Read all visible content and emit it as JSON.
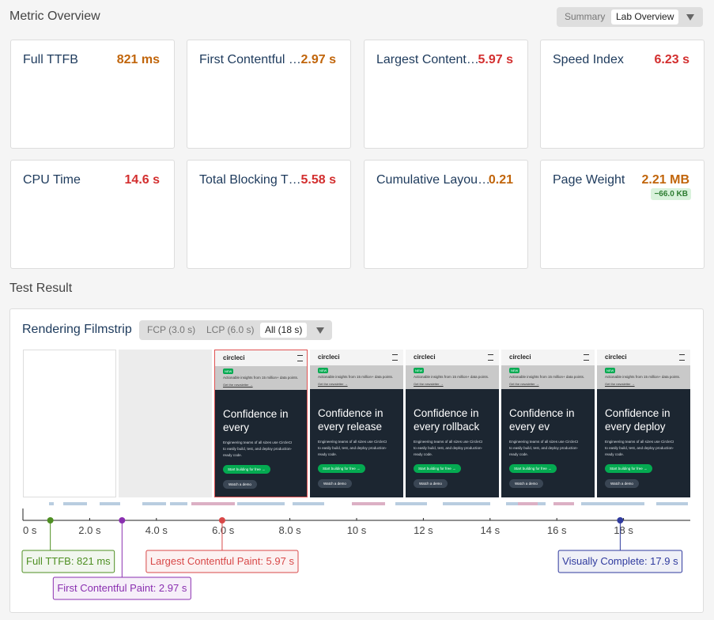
{
  "header": {
    "title": "Metric Overview",
    "view_options": [
      "Summary",
      "Lab Overview"
    ],
    "selected_view": 1
  },
  "metrics": [
    {
      "name": "Full TTFB",
      "value": "821 ms",
      "color": "#c1650b"
    },
    {
      "name": "First Contentful …",
      "value": "2.97 s",
      "color": "#c1650b"
    },
    {
      "name": "Largest Content…",
      "value": "5.97 s",
      "color": "#d32f2f"
    },
    {
      "name": "Speed Index",
      "value": "6.23 s",
      "color": "#d32f2f"
    },
    {
      "name": "CPU Time",
      "value": "14.6 s",
      "color": "#d32f2f"
    },
    {
      "name": "Total Blocking T…",
      "value": "5.58 s",
      "color": "#d32f2f"
    },
    {
      "name": "Cumulative Layou…",
      "value": "0.21",
      "color": "#c1650b"
    },
    {
      "name": "Page Weight",
      "value": "2.21 MB",
      "color": "#c1650b",
      "delta": "−66.0 KB"
    }
  ],
  "test_result": {
    "title": "Test Result",
    "filmstrip": {
      "title": "Rendering Filmstrip",
      "tabs": [
        "FCP (3.0 s)",
        "LCP (6.0 s)",
        "All (18 s)"
      ],
      "selected_tab": 2,
      "page": {
        "logo": "circleci",
        "badge": "NEW",
        "banner": "Actionable insights from 15 million+ data points.",
        "link": "Get the newsletter →",
        "body": "Engineering teams of all sizes use CircleCI to easily build, test, and deploy production-ready code.",
        "cta": "Start building for free →",
        "secondary": "Watch a demo"
      },
      "frames": [
        {
          "headline": [
            "Confidence in",
            "every"
          ],
          "highlight_color": "#e05252"
        },
        {
          "headline": [
            "Confidence in",
            "every release"
          ]
        },
        {
          "headline": [
            "Confidence in",
            "every rollback"
          ]
        },
        {
          "headline": [
            "Confidence in",
            "every ev"
          ]
        },
        {
          "headline": [
            "Confidence in",
            "every deploy"
          ]
        }
      ],
      "timeline": {
        "xlim": [
          0,
          20
        ],
        "ticks": [
          {
            "value": 0,
            "label": "0 s"
          },
          {
            "value": 2,
            "label": "2.0 s"
          },
          {
            "value": 4,
            "label": "4.0 s"
          },
          {
            "value": 6,
            "label": "6.0 s"
          },
          {
            "value": 8,
            "label": "8.0 s"
          },
          {
            "value": 10,
            "label": "10 s"
          },
          {
            "value": 12,
            "label": "12 s"
          },
          {
            "value": 14,
            "label": "14 s"
          },
          {
            "value": 16,
            "label": "16 s"
          },
          {
            "value": 18,
            "label": "18 s"
          }
        ],
        "markers": [
          {
            "label": "Full TTFB: 821 ms",
            "time": 0.821,
            "color": "#4e8f22"
          },
          {
            "label": "First Contentful Paint: 2.97 s",
            "time": 2.97,
            "color": "#8a2fb0"
          },
          {
            "label": "Largest Contentful Paint: 5.97 s",
            "time": 5.97,
            "color": "#d84848"
          },
          {
            "label": "Visually Complete: 17.9 s",
            "time": 17.9,
            "color": "#2f3a9e"
          }
        ]
      }
    }
  }
}
